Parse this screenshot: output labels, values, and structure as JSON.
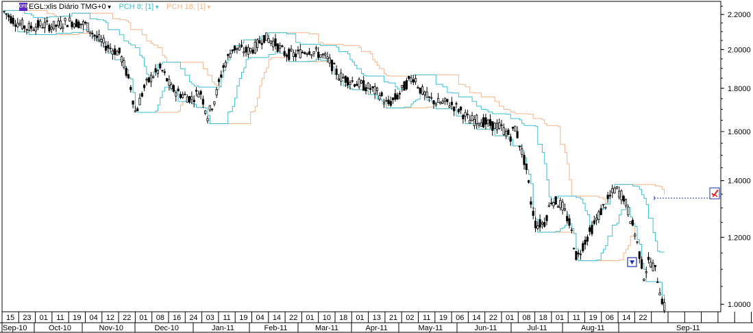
{
  "legend": {
    "icon_text": "CFD",
    "symbol": "EGL:xlis Diário TMG+0",
    "pch8": "PCH 8; [1]",
    "pch18": "PCH 18; [1]"
  },
  "colors": {
    "candles": "#000000",
    "pch8": "#3bbfcf",
    "pch18": "#f2b48a",
    "grid": "#000000",
    "dotted_line": "#1b2fb5",
    "badge": "#5b2bbf"
  },
  "icons": {
    "signal_down": "down-triangle-icon",
    "signal_alert": "checkmark-alert-icon"
  },
  "chart_data": {
    "type": "line",
    "title": "",
    "ylabel": "",
    "xlabel": "",
    "ylim": [
      0.98,
      2.28
    ],
    "yscale": "log",
    "y_ticks": [
      "2.2000",
      "2.0000",
      "1.8000",
      "1.6000",
      "1.4000",
      "1.2000",
      "1.0000"
    ],
    "x_day_ticks": [
      "15",
      "23",
      "01",
      "11",
      "19",
      "04",
      "12",
      "22",
      "01",
      "08",
      "16",
      "24",
      "03",
      "11",
      "19",
      "04",
      "14",
      "22",
      "01",
      "10",
      "18",
      "01",
      "13",
      "21",
      "02",
      "11",
      "19",
      "06",
      "14",
      "22",
      "01",
      "08",
      "18",
      "01",
      "11",
      "19",
      "06",
      "14",
      "22"
    ],
    "x_month_labels": [
      "Sep-10",
      "Oct-10",
      "Nov-10",
      "Dec-10",
      "Jan-11",
      "Feb-11",
      "Mar-11",
      "Apr-11",
      "May-11",
      "Jun-11",
      "Jul-11",
      "Aug-11",
      "Sep-11"
    ],
    "x": [
      "Sep-10",
      "Oct-10",
      "Nov-10",
      "Dec-10",
      "Jan-11",
      "Feb-11",
      "Mar-11",
      "Apr-11",
      "May-11",
      "Jun-11",
      "Jul-11",
      "Aug-11",
      "Sep-11"
    ],
    "series": [
      {
        "name": "EGL:xlis Diário TMG+0",
        "values": [
          2.22,
          2.15,
          1.68,
          1.75,
          1.98,
          2.02,
          1.82,
          1.8,
          1.7,
          1.55,
          1.22,
          1.27,
          1.0
        ]
      },
      {
        "name": "PCH 8; [1]",
        "values": [
          2.24,
          2.16,
          1.72,
          1.76,
          2.02,
          2.05,
          1.84,
          1.82,
          1.72,
          1.6,
          1.3,
          1.32,
          1.13
        ]
      },
      {
        "name": "PCH 18; [1]",
        "values": [
          2.26,
          2.22,
          1.95,
          1.8,
          2.08,
          2.12,
          2.05,
          1.92,
          1.9,
          1.72,
          1.36,
          1.37,
          1.36
        ]
      }
    ]
  }
}
